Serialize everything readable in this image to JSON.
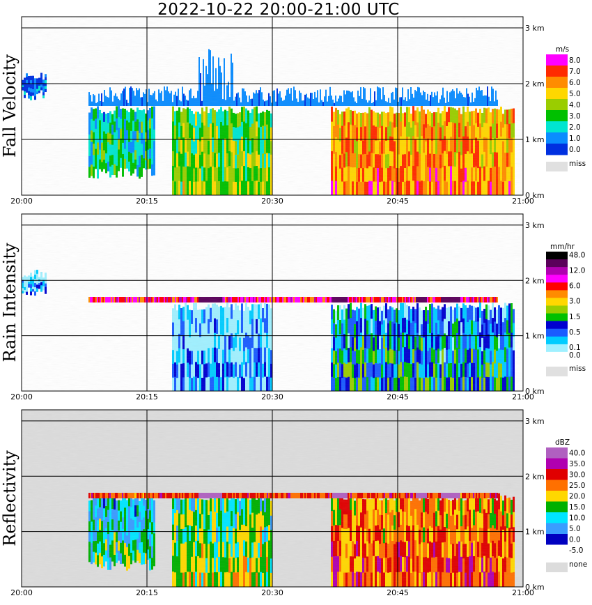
{
  "title": "2022-10-22   20:00-21:00 UTC",
  "x_ticks": [
    "20:00",
    "20:15",
    "20:30",
    "20:45",
    "21:00"
  ],
  "y_ticks": [
    "0 km",
    "1 km",
    "2 km",
    "3 km"
  ],
  "panels": [
    {
      "id": "fall-velocity",
      "ylabel": "Fall Velocity",
      "unit": "m/s",
      "missing_color": "#ffffff",
      "scale": [
        {
          "label": "8.0",
          "color": "#ff00ff"
        },
        {
          "label": "7.0",
          "color": "#ff2a00"
        },
        {
          "label": "6.0",
          "color": "#ff8c00"
        },
        {
          "label": "5.0",
          "color": "#ffd700"
        },
        {
          "label": "4.0",
          "color": "#9acd00"
        },
        {
          "label": "3.0",
          "color": "#00c000"
        },
        {
          "label": "2.0",
          "color": "#00e5d0"
        },
        {
          "label": "1.0",
          "color": "#0a8cff"
        },
        {
          "label": "0.0",
          "color": "#0030e0"
        }
      ],
      "miss_label": "miss",
      "miss_color": "#e0e0e0"
    },
    {
      "id": "rain-intensity",
      "ylabel": "Rain Intensity",
      "unit": "mm/hr",
      "missing_color": "#ffffff",
      "scale": [
        {
          "label": "48.0",
          "color": "#000000"
        },
        {
          "label": "",
          "color": "#5a005a"
        },
        {
          "label": "12.0",
          "color": "#b000b0"
        },
        {
          "label": "",
          "color": "#ff00ff"
        },
        {
          "label": "6.0",
          "color": "#ff0000"
        },
        {
          "label": "",
          "color": "#ff8c00"
        },
        {
          "label": "3.0",
          "color": "#ffd700"
        },
        {
          "label": "",
          "color": "#9acd00"
        },
        {
          "label": "1.5",
          "color": "#00c000"
        },
        {
          "label": "",
          "color": "#0000d0"
        },
        {
          "label": "0.5",
          "color": "#1a5cff"
        },
        {
          "label": "",
          "color": "#00ccff"
        },
        {
          "label": "0.1",
          "color": "#a0f0ff"
        },
        {
          "label": "0.0",
          "color": "#ffffff"
        }
      ],
      "miss_label": "miss",
      "miss_color": "#e0e0e0"
    },
    {
      "id": "reflectivity",
      "ylabel": "Reflectivity",
      "unit": "dBZ",
      "missing_color": "#dcdcdc",
      "scale": [
        {
          "label": "40.0",
          "color": "#b060c0"
        },
        {
          "label": "35.0",
          "color": "#b000b0"
        },
        {
          "label": "30.0",
          "color": "#e00000"
        },
        {
          "label": "25.0",
          "color": "#ff7000"
        },
        {
          "label": "20.0",
          "color": "#ffd700"
        },
        {
          "label": "15.0",
          "color": "#00b000"
        },
        {
          "label": "10.0",
          "color": "#00e5ff"
        },
        {
          "label": "5.0",
          "color": "#3a9cff"
        },
        {
          "label": "0.0",
          "color": "#0000c0"
        },
        {
          "label": "-5.0",
          "color": "#ffffff"
        }
      ],
      "miss_label": "none",
      "miss_color": "#dcdcdc"
    }
  ],
  "chart_data": [
    {
      "type": "heatmap",
      "title": "2022-10-22   20:00-21:00 UTC",
      "ylabel": "Fall Velocity",
      "colorbar_unit": "m/s",
      "x_range": [
        "20:00",
        "21:00"
      ],
      "x_ticks": [
        "20:00",
        "20:15",
        "20:30",
        "20:45",
        "21:00"
      ],
      "y_range_km": [
        0,
        3.2
      ],
      "y_ticks_km": [
        0,
        1,
        2,
        3
      ],
      "grid": true,
      "color_levels": [
        0.0,
        1.0,
        2.0,
        3.0,
        4.0,
        5.0,
        6.0,
        7.0,
        8.0
      ],
      "melting_layer_top_km": 1.65,
      "regions": [
        {
          "t_start": "20:00",
          "t_end": "20:03",
          "z_bottom_km": 1.7,
          "z_top_km": 2.2,
          "typical_value": 1.0
        },
        {
          "t_start": "20:08",
          "t_end": "20:16",
          "z_bottom_km": 0.3,
          "z_top_km": 1.6,
          "typical_value": 3.0
        },
        {
          "t_start": "20:18",
          "t_end": "20:30",
          "z_bottom_km": 0.0,
          "z_top_km": 1.6,
          "typical_value": 4.0
        },
        {
          "t_start": "20:37",
          "t_end": "20:59",
          "z_bottom_km": 0.0,
          "z_top_km": 1.6,
          "typical_value": 6.0
        }
      ],
      "ice_layer_km": [
        1.6,
        2.6
      ],
      "ice_layer_value": 1.0
    },
    {
      "type": "heatmap",
      "title": "2022-10-22   20:00-21:00 UTC",
      "ylabel": "Rain Intensity",
      "colorbar_unit": "mm/hr",
      "x_range": [
        "20:00",
        "21:00"
      ],
      "x_ticks": [
        "20:00",
        "20:15",
        "20:30",
        "20:45",
        "21:00"
      ],
      "y_range_km": [
        0,
        3.2
      ],
      "y_ticks_km": [
        0,
        1,
        2,
        3
      ],
      "grid": true,
      "color_levels": [
        0.0,
        0.1,
        0.5,
        1.5,
        3.0,
        6.0,
        12.0,
        48.0
      ],
      "bright_band_km": 1.65,
      "bright_band_value": 6.0,
      "regions": [
        {
          "t_start": "20:00",
          "t_end": "20:03",
          "z_bottom_km": 1.7,
          "z_top_km": 2.2,
          "typical_value": 0.1
        },
        {
          "t_start": "20:18",
          "t_end": "20:30",
          "z_bottom_km": 0.0,
          "z_top_km": 1.6,
          "typical_value": 0.1
        },
        {
          "t_start": "20:37",
          "t_end": "20:59",
          "z_bottom_km": 0.0,
          "z_top_km": 1.6,
          "typical_value": 0.5
        }
      ]
    },
    {
      "type": "heatmap",
      "title": "2022-10-22   20:00-21:00 UTC",
      "ylabel": "Reflectivity",
      "colorbar_unit": "dBZ",
      "x_range": [
        "20:00",
        "21:00"
      ],
      "x_ticks": [
        "20:00",
        "20:15",
        "20:30",
        "20:45",
        "21:00"
      ],
      "y_range_km": [
        0,
        3.2
      ],
      "y_ticks_km": [
        0,
        1,
        2,
        3
      ],
      "grid": true,
      "color_levels": [
        -5.0,
        0.0,
        5.0,
        10.0,
        15.0,
        20.0,
        25.0,
        30.0,
        35.0,
        40.0
      ],
      "bright_band_km": 1.65,
      "regions": [
        {
          "t_start": "20:08",
          "t_end": "20:16",
          "z_bottom_km": 0.3,
          "z_top_km": 1.7,
          "typical_value": 10.0
        },
        {
          "t_start": "20:18",
          "t_end": "20:30",
          "z_bottom_km": 0.0,
          "z_top_km": 1.7,
          "typical_value": 15.0
        },
        {
          "t_start": "20:37",
          "t_end": "20:59",
          "z_bottom_km": 0.0,
          "z_top_km": 1.7,
          "typical_value": 25.0
        }
      ]
    }
  ]
}
